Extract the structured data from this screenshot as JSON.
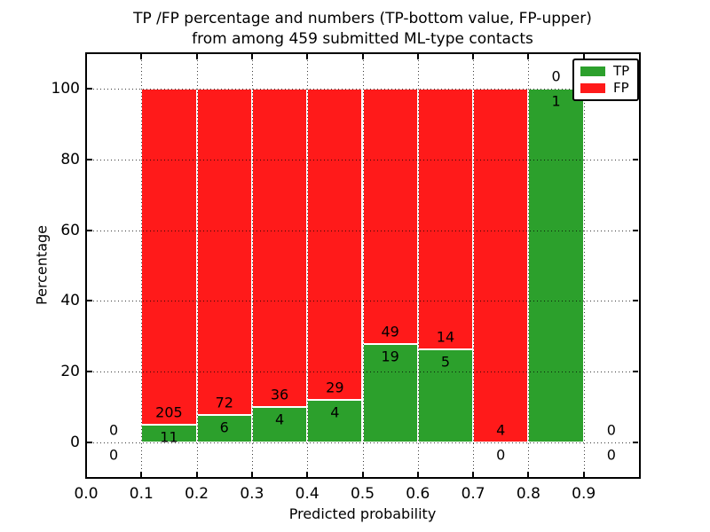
{
  "title": {
    "line1": "TP /FP percentage and numbers (TP-bottom value, FP-upper)",
    "line2": "from among 459 submitted ML-type contacts"
  },
  "legend": {
    "position": "upper right",
    "items": [
      {
        "label": "TP",
        "color": "#2ca02c"
      },
      {
        "label": "FP",
        "color": "#ff1a1a"
      }
    ]
  },
  "colors": {
    "tp_green": "#2ca02c",
    "fp_red": "#ff1a1a",
    "background": "#ffffff",
    "spine_black": "#000000"
  },
  "chart_data": {
    "type": "bar",
    "stacked": true,
    "title": "TP /FP percentage and numbers (TP-bottom value, FP-upper) from among 459 submitted ML-type contacts",
    "xlabel": "Predicted probability",
    "ylabel": "Percentage",
    "xlim": [
      0.0,
      1.0
    ],
    "ylim": [
      -10,
      110
    ],
    "grid": "dotted, drawn over bars",
    "legend_position": "upper right",
    "total_contacts": 459,
    "x_ticks": [
      {
        "value": 0.0,
        "label": "0.0"
      },
      {
        "value": 0.1,
        "label": "0.1"
      },
      {
        "value": 0.2,
        "label": "0.2"
      },
      {
        "value": 0.3,
        "label": "0.3"
      },
      {
        "value": 0.4,
        "label": "0.4"
      },
      {
        "value": 0.5,
        "label": "0.5"
      },
      {
        "value": 0.6,
        "label": "0.6"
      },
      {
        "value": 0.7,
        "label": "0.7"
      },
      {
        "value": 0.8,
        "label": "0.8"
      },
      {
        "value": 0.9,
        "label": "0.9"
      }
    ],
    "y_ticks": [
      {
        "value": 0,
        "label": "0"
      },
      {
        "value": 20,
        "label": "20"
      },
      {
        "value": 40,
        "label": "40"
      },
      {
        "value": 60,
        "label": "60"
      },
      {
        "value": 80,
        "label": "80"
      },
      {
        "value": 100,
        "label": "100"
      }
    ],
    "series": [
      {
        "name": "TP",
        "color": "#2ca02c",
        "role": "bottom segment, height = TP percentage"
      },
      {
        "name": "FP",
        "color": "#ff1a1a",
        "role": "upper segment, fills to 100%"
      }
    ],
    "bins": [
      {
        "range": [
          0.0,
          0.1
        ],
        "tp_count": 0,
        "fp_count": 0,
        "tp_pct": null
      },
      {
        "range": [
          0.1,
          0.2
        ],
        "tp_count": 11,
        "fp_count": 205,
        "tp_pct": 5.1
      },
      {
        "range": [
          0.2,
          0.3
        ],
        "tp_count": 6,
        "fp_count": 72,
        "tp_pct": 7.7
      },
      {
        "range": [
          0.3,
          0.4
        ],
        "tp_count": 4,
        "fp_count": 36,
        "tp_pct": 10.0
      },
      {
        "range": [
          0.4,
          0.5
        ],
        "tp_count": 4,
        "fp_count": 29,
        "tp_pct": 12.1
      },
      {
        "range": [
          0.5,
          0.6
        ],
        "tp_count": 19,
        "fp_count": 49,
        "tp_pct": 27.9
      },
      {
        "range": [
          0.6,
          0.7
        ],
        "tp_count": 5,
        "fp_count": 14,
        "tp_pct": 26.3
      },
      {
        "range": [
          0.7,
          0.8
        ],
        "tp_count": 0,
        "fp_count": 4,
        "tp_pct": 0.0
      },
      {
        "range": [
          0.8,
          0.9
        ],
        "tp_count": 1,
        "fp_count": 0,
        "tp_pct": 100.0
      },
      {
        "range": [
          0.9,
          1.0
        ],
        "tp_count": 0,
        "fp_count": 0,
        "tp_pct": null
      }
    ],
    "label_rule": "FP count printed just above green/red boundary, TP count just below"
  }
}
